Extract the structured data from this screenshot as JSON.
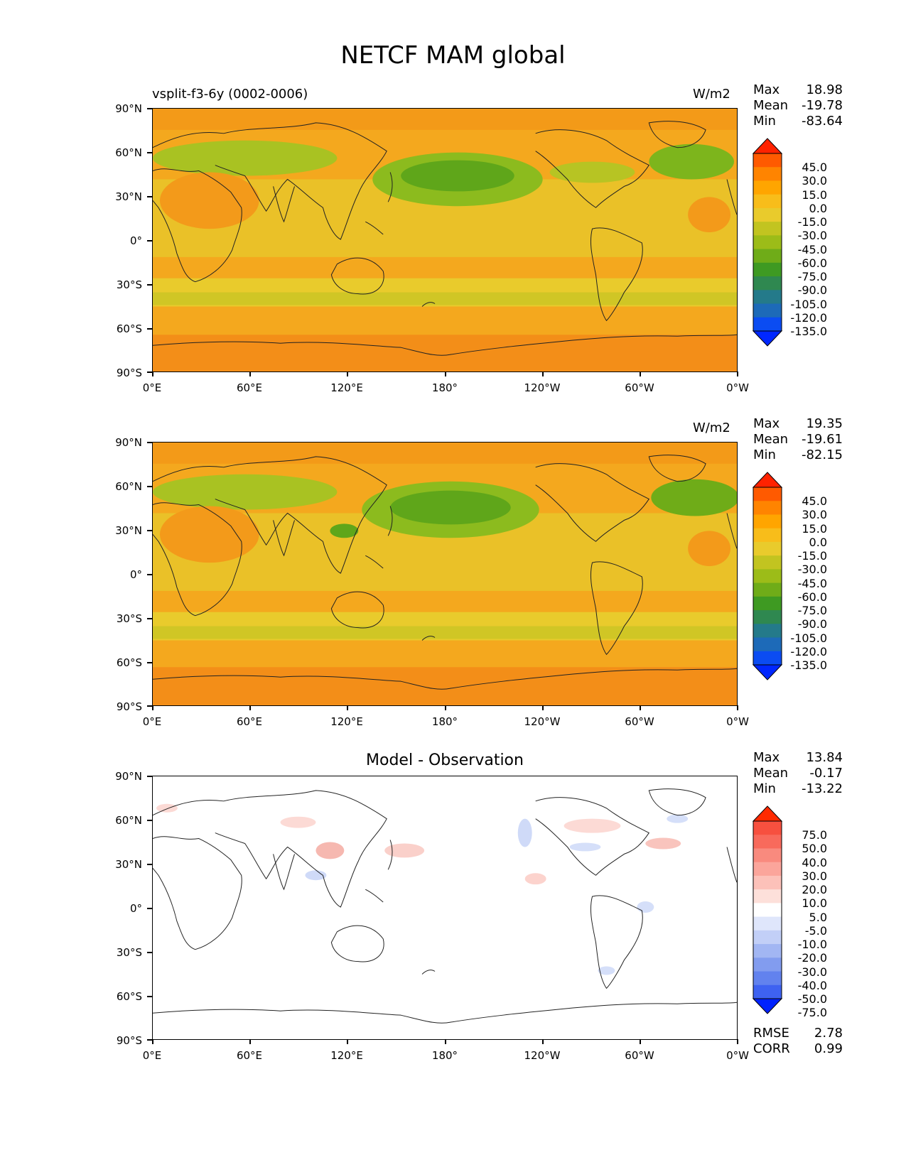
{
  "title": "NETCF MAM global",
  "colors": {
    "map_bg": "#f7b020",
    "land_line": "#333333",
    "green_dark": "#4e9a1a",
    "green_mid": "#7cb51c",
    "yellow_band": "#dcc826",
    "orange_band": "#f29a1a",
    "diff_red": "#f2a0a0",
    "diff_blue": "#b8c8f5"
  },
  "axes": {
    "lat_labels": [
      "90°N",
      "60°N",
      "30°N",
      "0°",
      "30°S",
      "60°S",
      "90°S"
    ],
    "lon_labels": [
      "0°E",
      "60°E",
      "120°E",
      "180°",
      "120°W",
      "60°W",
      "0°W"
    ]
  },
  "panels": [
    {
      "left_title": "vsplit-f3-6y (0002-0006)",
      "center_title": "",
      "units": "W/m2",
      "stats": {
        "Max": "18.98",
        "Mean": "-19.78",
        "Min": "-83.64"
      },
      "colorbar": {
        "labels": [
          "45.0",
          "30.0",
          "15.0",
          "0.0",
          "-15.0",
          "-30.0",
          "-45.0",
          "-60.0",
          "-75.0",
          "-90.0",
          "-105.0",
          "-120.0",
          "-135.0"
        ],
        "colors": [
          "#ff2200",
          "#ff5a00",
          "#ff8400",
          "#ffa500",
          "#f8bd1a",
          "#e9cb2c",
          "#c2c420",
          "#9cbc18",
          "#6fac18",
          "#3e9a22",
          "#2f8850",
          "#247a8a",
          "#1d6ab8",
          "#0b4cf2",
          "#0027ff"
        ]
      },
      "footer": null
    },
    {
      "left_title": "",
      "center_title": "",
      "units": "W/m2",
      "stats": {
        "Max": "19.35",
        "Mean": "-19.61",
        "Min": "-82.15"
      },
      "colorbar": {
        "labels": [
          "45.0",
          "30.0",
          "15.0",
          "0.0",
          "-15.0",
          "-30.0",
          "-45.0",
          "-60.0",
          "-75.0",
          "-90.0",
          "-105.0",
          "-120.0",
          "-135.0"
        ],
        "colors": [
          "#ff2200",
          "#ff5a00",
          "#ff8400",
          "#ffa500",
          "#f8bd1a",
          "#e9cb2c",
          "#c2c420",
          "#9cbc18",
          "#6fac18",
          "#3e9a22",
          "#2f8850",
          "#247a8a",
          "#1d6ab8",
          "#0b4cf2",
          "#0027ff"
        ]
      },
      "footer": null
    },
    {
      "left_title": "",
      "center_title": "Model - Observation",
      "units": "",
      "stats": {
        "Max": "13.84",
        "Mean": "-0.17",
        "Min": "-13.22"
      },
      "colorbar": {
        "labels": [
          "75.0",
          "50.0",
          "40.0",
          "30.0",
          "20.0",
          "10.0",
          "5.0",
          "-5.0",
          "-10.0",
          "-20.0",
          "-30.0",
          "-40.0",
          "-50.0",
          "-75.0"
        ],
        "colors": [
          "#ff2a00",
          "#f7503f",
          "#f86a5c",
          "#f98a7e",
          "#fba59b",
          "#fcc1b9",
          "#fde0da",
          "#ffffff",
          "#dfe6fb",
          "#c2cff7",
          "#a2b6f3",
          "#829cef",
          "#6282ee",
          "#3e62f1",
          "#0022ff"
        ]
      },
      "footer": {
        "RMSE": "2.78",
        "CORR": "0.99"
      }
    }
  ]
}
